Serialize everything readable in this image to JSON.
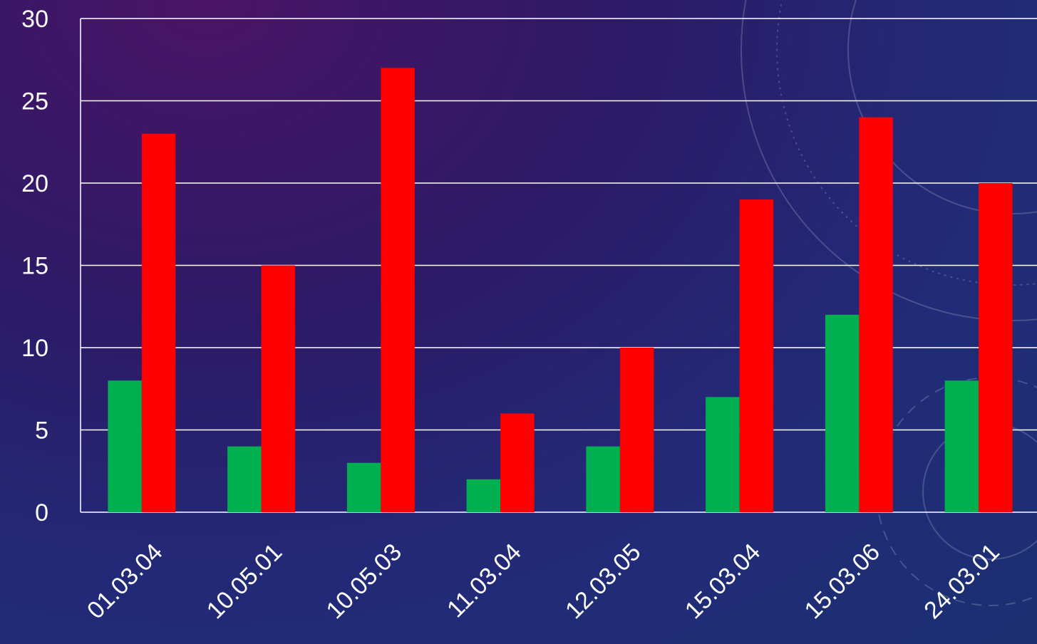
{
  "chart_data": {
    "type": "bar",
    "categories": [
      "01.03.04",
      "10.05.01",
      "10.05.03",
      "11.03.04",
      "12.03.05",
      "15.03.04",
      "15.03.06",
      "24.03.01"
    ],
    "series": [
      {
        "color": "#00b050",
        "values": [
          8,
          4,
          3,
          2,
          4,
          7,
          12,
          8
        ]
      },
      {
        "color": "#ff0000",
        "values": [
          23,
          15,
          27,
          6,
          10,
          19,
          24,
          20
        ]
      }
    ],
    "yticks": [
      "0",
      "5",
      "10",
      "15",
      "20",
      "25",
      "30"
    ],
    "ylim": [
      0,
      30
    ],
    "grid": true,
    "legend": "none",
    "title": "",
    "xlabel": "",
    "ylabel": ""
  }
}
